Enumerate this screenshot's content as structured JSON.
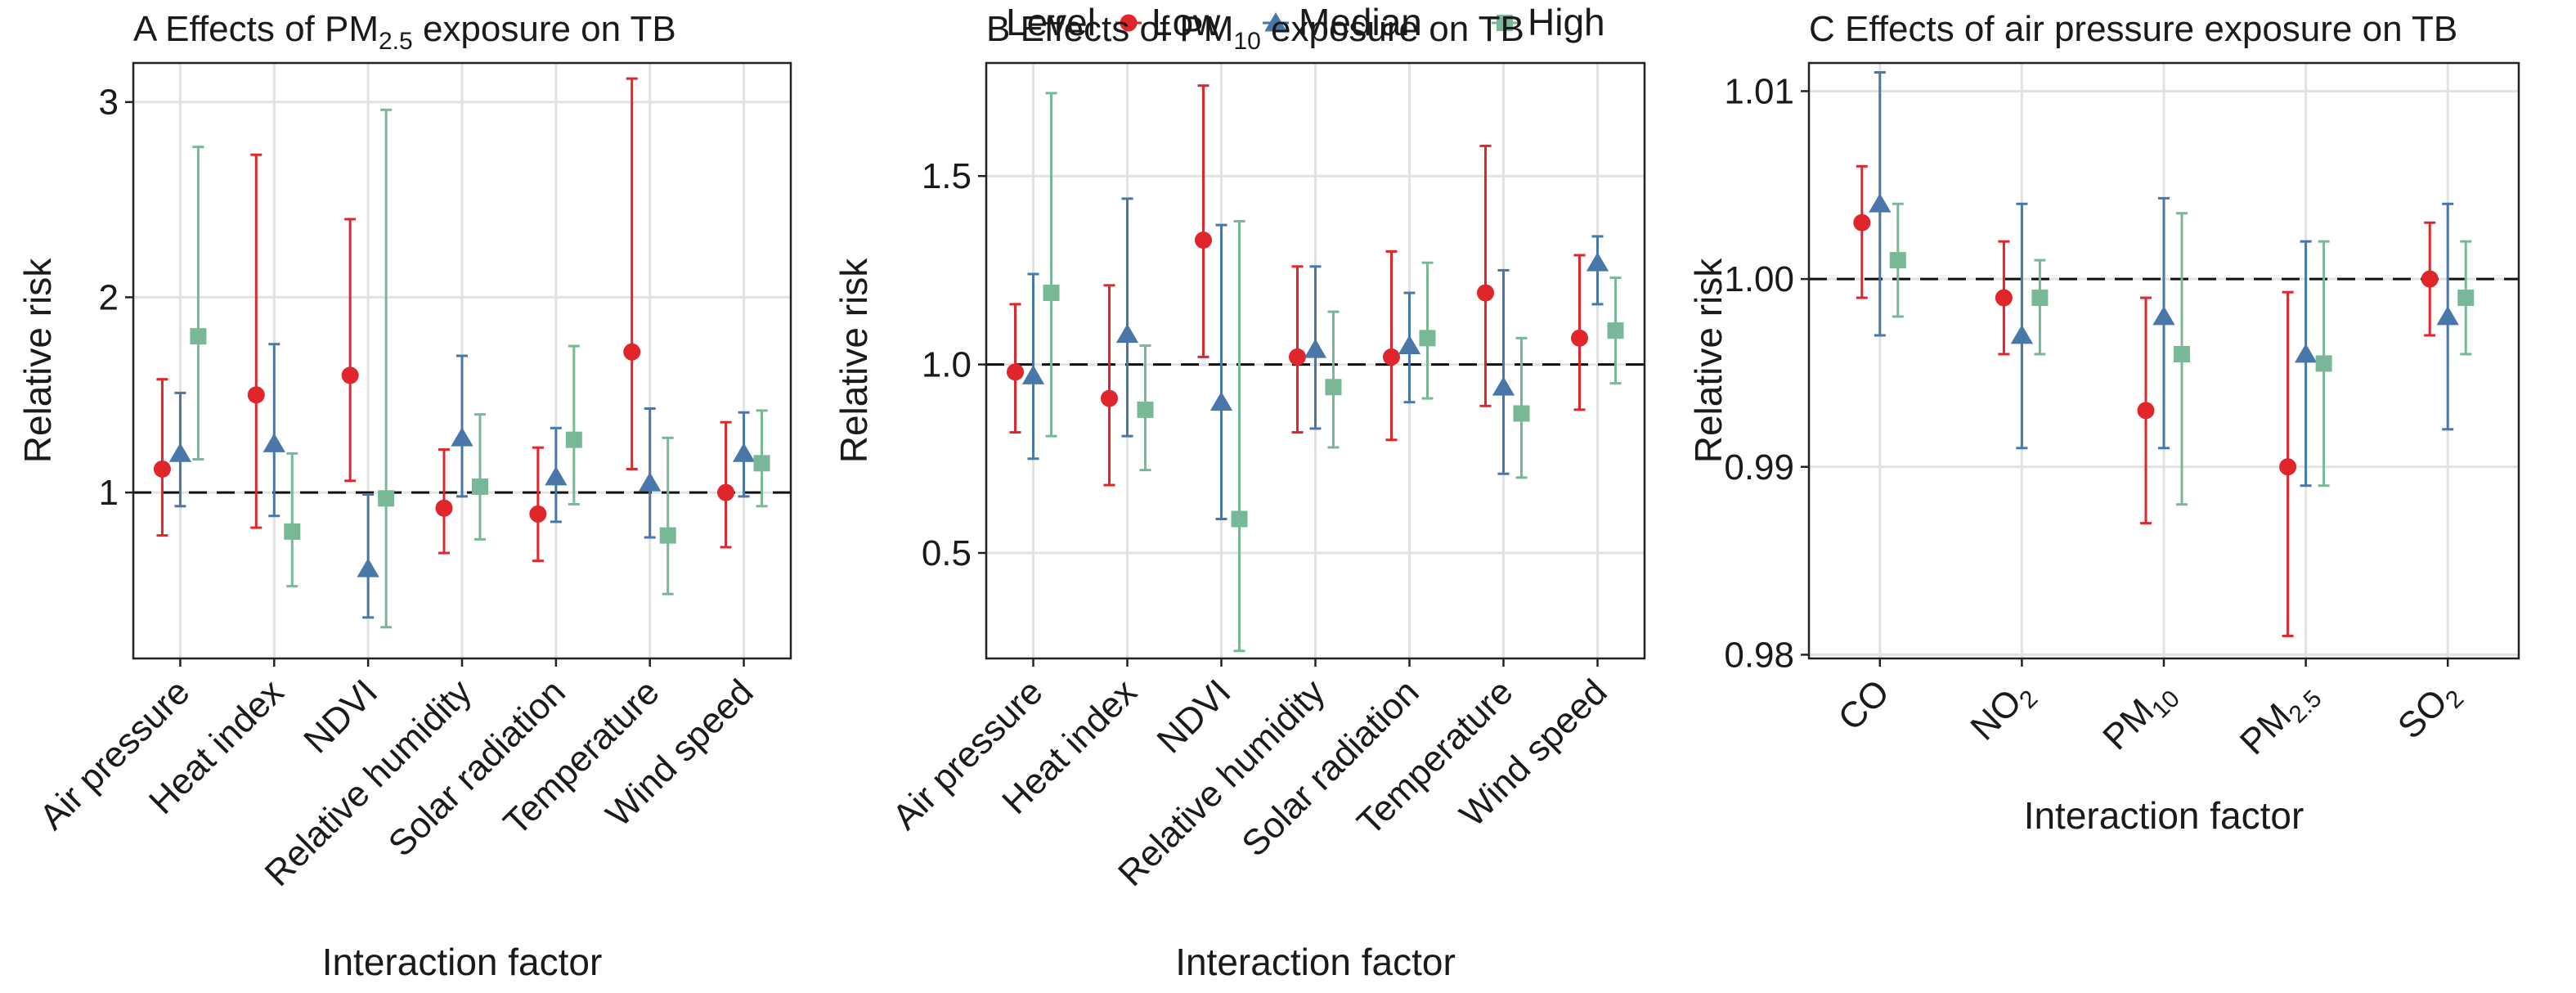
{
  "legend": {
    "title": "Level",
    "items": [
      {
        "label": "Low",
        "shape": "circle",
        "color": "#e0262b"
      },
      {
        "label": "Median",
        "shape": "triangle",
        "color": "#4a77a9"
      },
      {
        "label": "High",
        "shape": "square",
        "color": "#79b897"
      }
    ]
  },
  "chart_data": [
    {
      "type": "scatter",
      "panel": "A",
      "title": "Effects of PM",
      "title_sub": "2.5",
      "title_tail": " exposure on TB",
      "xlabel": "Interaction factor",
      "ylabel": "Relative risk",
      "categories": [
        {
          "label": "Air pressure"
        },
        {
          "label": "Heat index"
        },
        {
          "label": "NDVI"
        },
        {
          "label": "Relative humidity"
        },
        {
          "label": "Solar radiation"
        },
        {
          "label": "Temperature"
        },
        {
          "label": "Wind speed"
        }
      ],
      "yticks": [
        1,
        2,
        3
      ],
      "ytick_labels": [
        "1",
        "2",
        "3"
      ],
      "ylim": [
        0.15,
        3.2
      ],
      "reference_line": 1,
      "x_tick_rotation": -45,
      "series": [
        {
          "name": "Low",
          "values": [
            1.12,
            1.5,
            1.6,
            0.92,
            0.89,
            1.72,
            1.0
          ],
          "lower": [
            0.78,
            0.82,
            1.06,
            0.69,
            0.65,
            1.12,
            0.72
          ],
          "upper": [
            1.58,
            2.73,
            2.4,
            1.22,
            1.23,
            3.12,
            1.36
          ]
        },
        {
          "name": "Median",
          "values": [
            1.2,
            1.25,
            0.61,
            1.28,
            1.08,
            1.05,
            1.2
          ],
          "lower": [
            0.93,
            0.88,
            0.36,
            0.98,
            0.85,
            0.77,
            0.98
          ],
          "upper": [
            1.51,
            1.76,
            0.99,
            1.7,
            1.33,
            1.43,
            1.41
          ]
        },
        {
          "name": "High",
          "values": [
            1.8,
            0.8,
            0.97,
            1.03,
            1.27,
            0.78,
            1.15
          ],
          "lower": [
            1.17,
            0.52,
            0.31,
            0.76,
            0.94,
            0.48,
            0.93
          ],
          "upper": [
            2.77,
            1.2,
            2.96,
            1.4,
            1.75,
            1.28,
            1.42
          ]
        }
      ]
    },
    {
      "type": "scatter",
      "panel": "B",
      "title": "Effects of PM",
      "title_sub": "10",
      "title_tail": " exposure on TB",
      "xlabel": "Interaction factor",
      "ylabel": "Relative risk",
      "categories": [
        {
          "label": "Air pressure"
        },
        {
          "label": "Heat index"
        },
        {
          "label": "NDVI"
        },
        {
          "label": "Relative humidity"
        },
        {
          "label": "Solar radiation"
        },
        {
          "label": "Temperature"
        },
        {
          "label": "Wind speed"
        }
      ],
      "yticks": [
        0.5,
        1.0,
        1.5
      ],
      "ytick_labels": [
        "0.5",
        "1.0",
        "1.5"
      ],
      "ylim": [
        0.22,
        1.8
      ],
      "reference_line": 1,
      "x_tick_rotation": -45,
      "series": [
        {
          "name": "Low",
          "values": [
            0.98,
            0.91,
            1.33,
            1.02,
            1.02,
            1.19,
            1.07
          ],
          "lower": [
            0.82,
            0.68,
            1.02,
            0.82,
            0.8,
            0.89,
            0.88
          ],
          "upper": [
            1.16,
            1.21,
            1.74,
            1.26,
            1.3,
            1.58,
            1.29
          ]
        },
        {
          "name": "Median",
          "values": [
            0.97,
            1.08,
            0.9,
            1.04,
            1.05,
            0.94,
            1.27
          ],
          "lower": [
            0.75,
            0.81,
            0.59,
            0.83,
            0.9,
            0.71,
            1.16
          ],
          "upper": [
            1.24,
            1.44,
            1.37,
            1.26,
            1.19,
            1.25,
            1.34
          ]
        },
        {
          "name": "High",
          "values": [
            1.19,
            0.88,
            0.59,
            0.94,
            1.07,
            0.87,
            1.09
          ],
          "lower": [
            0.81,
            0.72,
            0.24,
            0.78,
            0.91,
            0.7,
            0.95
          ],
          "upper": [
            1.72,
            1.05,
            1.38,
            1.14,
            1.27,
            1.07,
            1.23
          ]
        }
      ]
    },
    {
      "type": "scatter",
      "panel": "C",
      "title": "Effects of air pressure exposure on TB",
      "title_sub": "",
      "title_tail": "",
      "xlabel": "Interaction factor",
      "ylabel": "Relative risk",
      "categories": [
        {
          "label": "CO",
          "sub": ""
        },
        {
          "label": "NO",
          "sub": "2"
        },
        {
          "label": "PM",
          "sub": "10"
        },
        {
          "label": "PM",
          "sub": "2.5"
        },
        {
          "label": "SO",
          "sub": "2"
        }
      ],
      "yticks": [
        0.98,
        0.99,
        1.0,
        1.01
      ],
      "ytick_labels": [
        "0.98",
        "0.99",
        "1.00",
        "1.01"
      ],
      "ylim": [
        0.9798,
        1.0115
      ],
      "reference_line": 1,
      "x_tick_rotation": -45,
      "series": [
        {
          "name": "Low",
          "values": [
            1.003,
            0.999,
            0.993,
            0.99,
            1.0
          ],
          "lower": [
            0.999,
            0.996,
            0.987,
            0.981,
            0.997
          ],
          "upper": [
            1.006,
            1.002,
            0.999,
            0.9993,
            1.003
          ]
        },
        {
          "name": "Median",
          "values": [
            1.004,
            0.997,
            0.998,
            0.996,
            0.998
          ],
          "lower": [
            0.997,
            0.991,
            0.991,
            0.989,
            0.992
          ],
          "upper": [
            1.011,
            1.004,
            1.0043,
            1.002,
            1.004
          ]
        },
        {
          "name": "High",
          "values": [
            1.001,
            0.999,
            0.996,
            0.9955,
            0.999
          ],
          "lower": [
            0.998,
            0.996,
            0.988,
            0.989,
            0.996
          ],
          "upper": [
            1.004,
            1.001,
            1.0035,
            1.002,
            1.002
          ]
        }
      ]
    }
  ]
}
